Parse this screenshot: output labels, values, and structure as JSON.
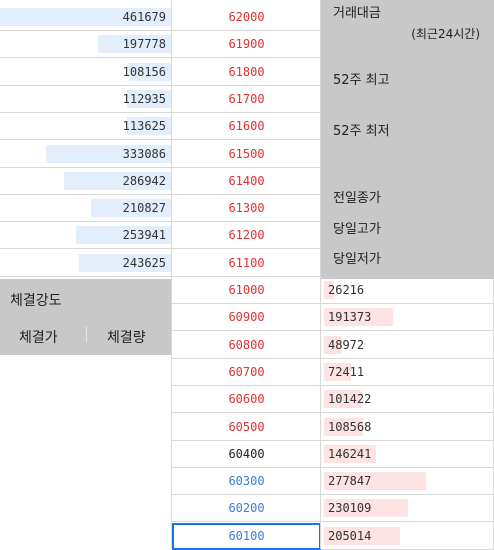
{
  "colors": {
    "up": "#e03131",
    "down": "#3b7dd8",
    "neutral": "#222222",
    "ask_bar": "#e3eefc",
    "bid_bar": "#fde3e3",
    "panel_bg": "#c8c8c8"
  },
  "asks": [
    {
      "price": "62000",
      "volume": "461679",
      "bar": 1.0
    },
    {
      "price": "61900",
      "volume": "197778",
      "bar": 0.43
    },
    {
      "price": "61800",
      "volume": "108156",
      "bar": 0.25
    },
    {
      "price": "61700",
      "volume": "112935",
      "bar": 0.26
    },
    {
      "price": "61600",
      "volume": "113625",
      "bar": 0.26
    },
    {
      "price": "61500",
      "volume": "333086",
      "bar": 0.73
    },
    {
      "price": "61400",
      "volume": "286942",
      "bar": 0.63
    },
    {
      "price": "61300",
      "volume": "210827",
      "bar": 0.47
    },
    {
      "price": "61200",
      "volume": "253941",
      "bar": 0.56
    },
    {
      "price": "61100",
      "volume": "243625",
      "bar": 0.54
    }
  ],
  "bids": [
    {
      "price": "61000",
      "volume": "26216",
      "bar": 0.06,
      "trend": "up"
    },
    {
      "price": "60900",
      "volume": "191373",
      "bar": 0.41,
      "trend": "up"
    },
    {
      "price": "60800",
      "volume": "48972",
      "bar": 0.11,
      "trend": "up"
    },
    {
      "price": "60700",
      "volume": "72411",
      "bar": 0.16,
      "trend": "up"
    },
    {
      "price": "60600",
      "volume": "101422",
      "bar": 0.22,
      "trend": "up"
    },
    {
      "price": "60500",
      "volume": "108568",
      "bar": 0.23,
      "trend": "up"
    },
    {
      "price": "60400",
      "volume": "146241",
      "bar": 0.31,
      "trend": "neutral"
    },
    {
      "price": "60300",
      "volume": "277847",
      "bar": 0.61,
      "trend": "down"
    },
    {
      "price": "60200",
      "volume": "230109",
      "bar": 0.5,
      "trend": "down"
    },
    {
      "price": "60100",
      "volume": "205014",
      "bar": 0.45,
      "trend": "down"
    }
  ],
  "info": {
    "trade_value": "거래대금",
    "trade_value_sub": "(최근24시간)",
    "high_52w": "52주 최고",
    "low_52w": "52주 최저",
    "prev_close": "전일종가",
    "today_high": "당일고가",
    "today_low": "당일저가"
  },
  "trades": {
    "strength_label": "체결강도",
    "col_price": "체결가",
    "col_volume": "체결량"
  }
}
